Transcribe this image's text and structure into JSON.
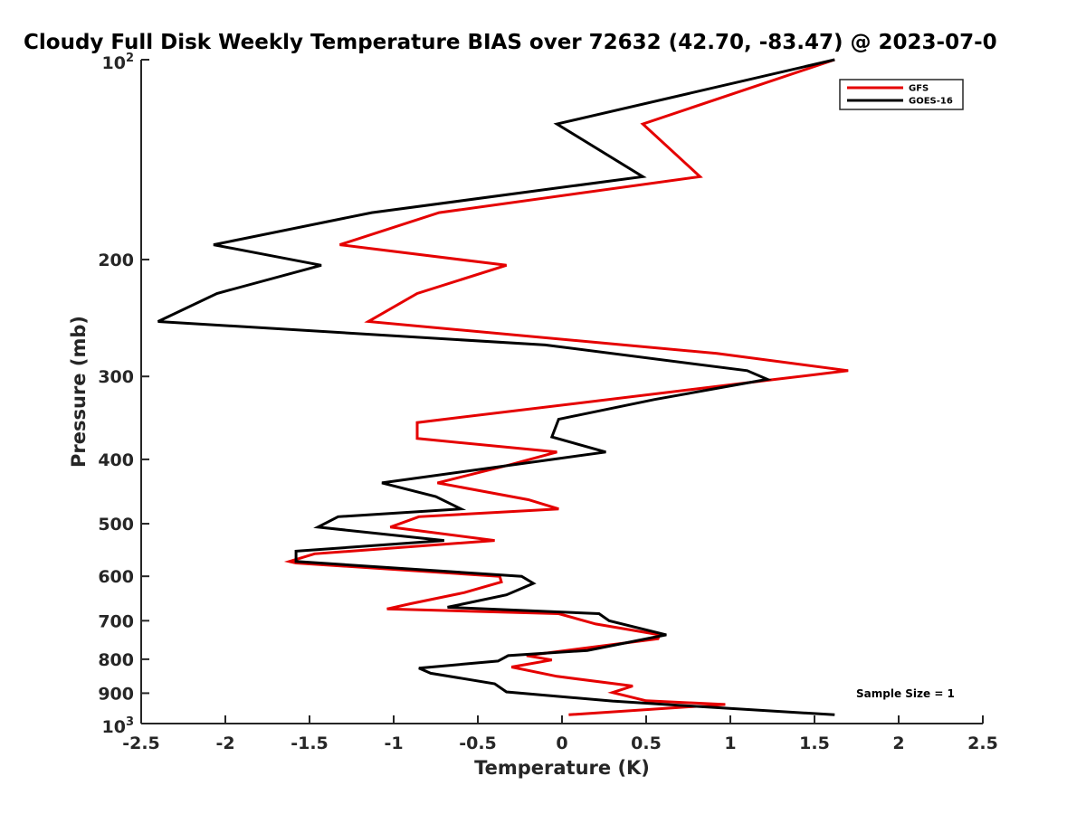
{
  "chart_data": {
    "type": "line",
    "title": "Cloudy Full Disk Weekly Temperature BIAS over 72632 (42.70, -83.47) @ 2023-07-0",
    "xlabel": "Temperature (K)",
    "ylabel": "Pressure (mb)",
    "xlim": [
      -2.5,
      2.5
    ],
    "ylim": [
      100,
      1000
    ],
    "y_scale": "log",
    "y_reversed": true,
    "x_ticks": [
      "-2.5",
      "-2",
      "-1.5",
      "-1",
      "-0.5",
      "0",
      "0.5",
      "1",
      "1.5",
      "2",
      "2.5"
    ],
    "y_ticks": [
      {
        "value": 100,
        "base": "10",
        "exp": "2"
      },
      {
        "value": 200,
        "label": "200"
      },
      {
        "value": 300,
        "label": "300"
      },
      {
        "value": 400,
        "label": "400"
      },
      {
        "value": 500,
        "label": "500"
      },
      {
        "value": 600,
        "label": "600"
      },
      {
        "value": 700,
        "label": "700"
      },
      {
        "value": 800,
        "label": "800"
      },
      {
        "value": 900,
        "label": "900"
      },
      {
        "value": 1000,
        "base": "10",
        "exp": "3"
      }
    ],
    "legend": "top-right",
    "annotation": "Sample Size = 1",
    "series": [
      {
        "name": "GFS",
        "color": "#e50000",
        "points": [
          [
            1.62,
            100
          ],
          [
            0.48,
            125
          ],
          [
            0.82,
            150
          ],
          [
            -0.73,
            170
          ],
          [
            -1.32,
            190
          ],
          [
            -0.33,
            204
          ],
          [
            -0.86,
            225
          ],
          [
            -1.15,
            248
          ],
          [
            0.92,
            277
          ],
          [
            1.7,
            294
          ],
          [
            1.27,
            303
          ],
          [
            -0.86,
            352
          ],
          [
            -0.86,
            372
          ],
          [
            -0.03,
            390
          ],
          [
            -0.3,
            407
          ],
          [
            -0.74,
            434
          ],
          [
            -0.2,
            460
          ],
          [
            -0.02,
            475
          ],
          [
            -0.85,
            488
          ],
          [
            -1.02,
            506
          ],
          [
            -0.4,
            530
          ],
          [
            -1.47,
            555
          ],
          [
            -1.62,
            570
          ],
          [
            -1.58,
            573
          ],
          [
            -0.37,
            600
          ],
          [
            -0.36,
            612
          ],
          [
            -0.58,
            635
          ],
          [
            -0.9,
            660
          ],
          [
            -1.04,
            672
          ],
          [
            -0.02,
            683
          ],
          [
            0.2,
            708
          ],
          [
            0.58,
            735
          ],
          [
            0.57,
            745
          ],
          [
            -0.21,
            790
          ],
          [
            -0.06,
            802
          ],
          [
            -0.3,
            822
          ],
          [
            -0.03,
            849
          ],
          [
            0.42,
            878
          ],
          [
            0.3,
            898
          ],
          [
            0.5,
            924
          ],
          [
            0.97,
            936
          ],
          [
            0.04,
            970
          ]
        ]
      },
      {
        "name": "GOES-16",
        "color": "#000000",
        "points": [
          [
            1.62,
            100
          ],
          [
            -0.03,
            125
          ],
          [
            0.48,
            150
          ],
          [
            -1.13,
            170
          ],
          [
            -2.07,
            190
          ],
          [
            -1.43,
            204
          ],
          [
            -2.05,
            225
          ],
          [
            -2.4,
            248
          ],
          [
            -0.1,
            269
          ],
          [
            1.1,
            294
          ],
          [
            1.22,
            303
          ],
          [
            0.55,
            325
          ],
          [
            -0.02,
            348
          ],
          [
            -0.06,
            370
          ],
          [
            0.26,
            390
          ],
          [
            -1.07,
            434
          ],
          [
            -0.75,
            455
          ],
          [
            -0.6,
            475
          ],
          [
            -1.33,
            488
          ],
          [
            -1.45,
            506
          ],
          [
            -0.7,
            530
          ],
          [
            -1.58,
            550
          ],
          [
            -1.58,
            570
          ],
          [
            -0.24,
            600
          ],
          [
            -0.17,
            615
          ],
          [
            -0.33,
            640
          ],
          [
            -0.68,
            668
          ],
          [
            0.22,
            683
          ],
          [
            0.28,
            700
          ],
          [
            0.62,
            735
          ],
          [
            0.15,
            776
          ],
          [
            -0.32,
            790
          ],
          [
            -0.38,
            805
          ],
          [
            -0.85,
            825
          ],
          [
            -0.78,
            840
          ],
          [
            -0.4,
            871
          ],
          [
            -0.33,
            896
          ],
          [
            0.3,
            925
          ],
          [
            0.8,
            942
          ],
          [
            1.62,
            970
          ]
        ]
      }
    ]
  }
}
